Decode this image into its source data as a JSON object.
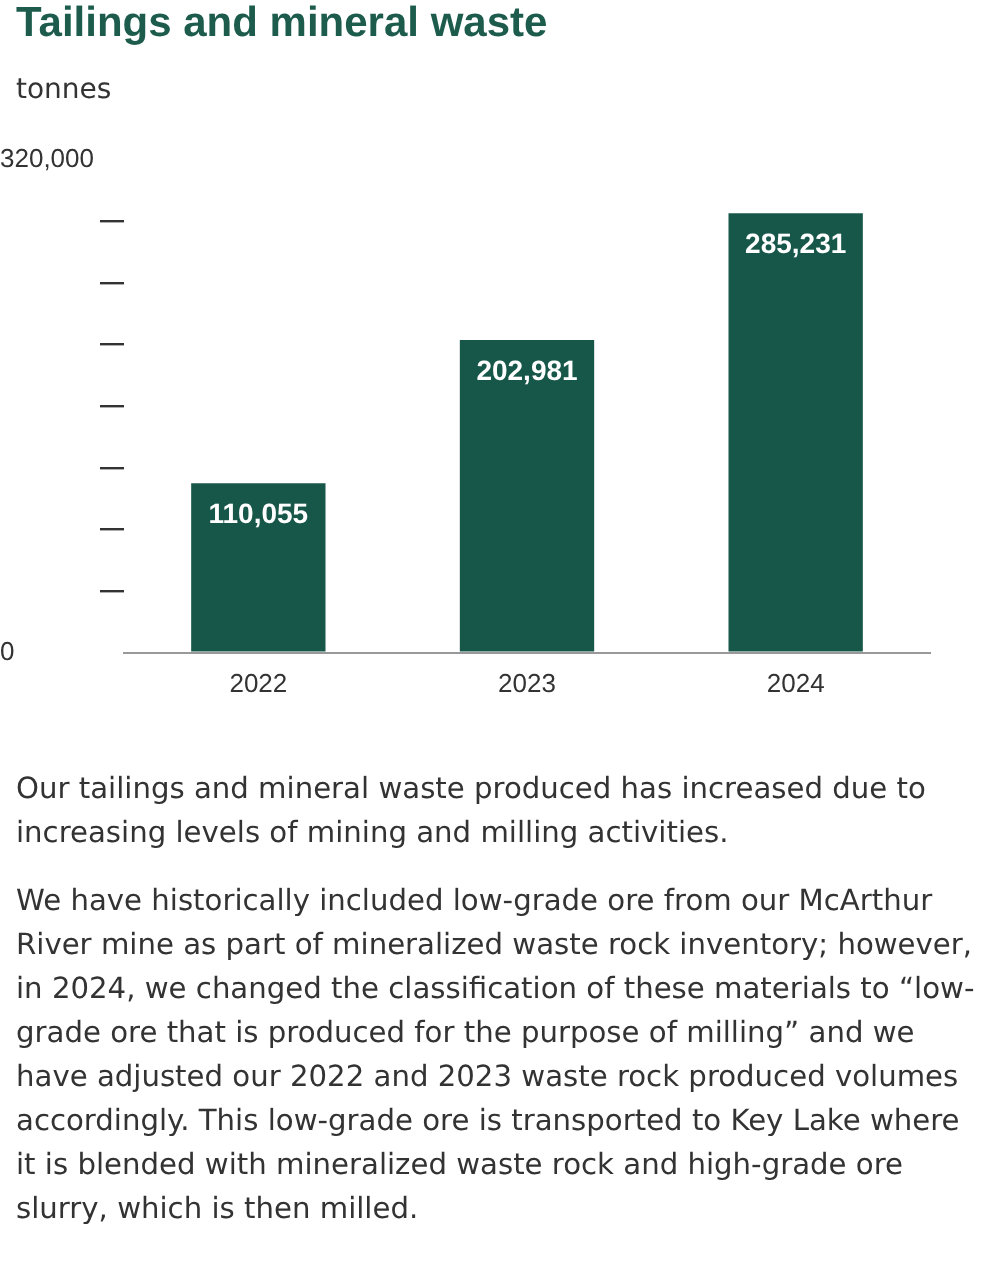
{
  "chart_data": {
    "type": "bar",
    "title": "Tailings and mineral waste",
    "ylabel": "tonnes",
    "categories": [
      "2022",
      "2023",
      "2024"
    ],
    "values": [
      110055,
      202981,
      285231
    ],
    "color": "#17574a",
    "value_labels": [
      "110,055",
      "202,981",
      "285,231"
    ],
    "ylim": [
      0,
      320000
    ],
    "yticks": [
      0,
      {
        "value": 40000,
        "label": null
      },
      {
        "value": 80000,
        "label": null
      },
      {
        "value": 120000,
        "label": null
      },
      {
        "value": 160000,
        "label": null
      },
      {
        "value": 200000,
        "label": null
      },
      {
        "value": 240000,
        "label": null
      },
      {
        "value": 280000,
        "label": null
      },
      {
        "value": 320000,
        "label": "320,000"
      }
    ],
    "grid": false,
    "legend": false,
    "annotations": [
      "Our tailings and mineral waste produced has increased due to increasing levels of mining and milling activities.",
      "We have historically included low-grade ore from our McArthur River mine as part of mineralized waste rock inventory; however, in 2024, we changed the classification of these materials to “low-grade ore that is produced for the purpose of milling” and we have adjusted our 2022 and 2023 waste rock produced volumes accordingly. This low-grade ore is transported to Key Lake where it is blended with mineralized waste rock and high-grade ore slurry, which is then milled."
    ]
  }
}
